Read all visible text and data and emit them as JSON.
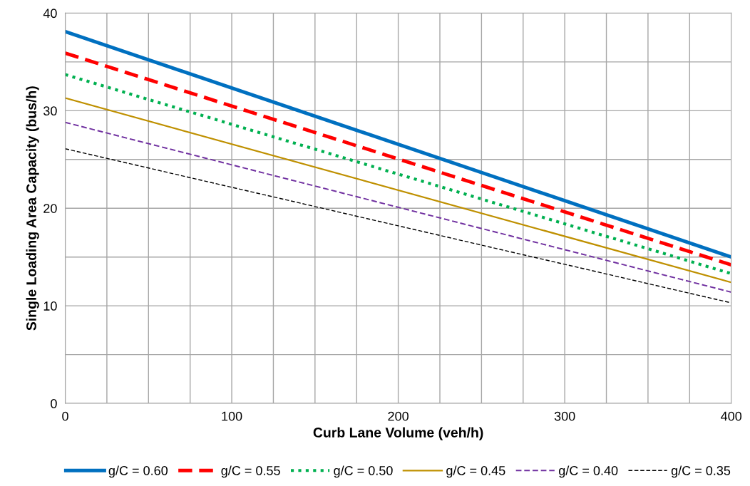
{
  "chart_data": {
    "type": "line",
    "xlabel": "Curb Lane Volume (veh/h)",
    "ylabel": "Single Loading Area Capacity (bus/h)",
    "x": [
      0,
      400
    ],
    "xlim": [
      0,
      400
    ],
    "ylim": [
      0,
      40
    ],
    "xticks": [
      0,
      {
        "value": 25,
        "label": null
      },
      {
        "value": 50,
        "label": null
      },
      {
        "value": 75,
        "label": null
      },
      100,
      {
        "value": 125,
        "label": null
      },
      {
        "value": 150,
        "label": null
      },
      {
        "value": 175,
        "label": null
      },
      200,
      {
        "value": 225,
        "label": null
      },
      {
        "value": 250,
        "label": null
      },
      {
        "value": 275,
        "label": null
      },
      300,
      {
        "value": 325,
        "label": null
      },
      {
        "value": 350,
        "label": null
      },
      {
        "value": 375,
        "label": null
      },
      400
    ],
    "yticks": [
      0,
      {
        "value": 5,
        "label": null
      },
      10,
      {
        "value": 15,
        "label": null
      },
      20,
      {
        "value": 25,
        "label": null
      },
      30,
      {
        "value": 35,
        "label": null
      },
      40
    ],
    "grid": true,
    "legend": "bottom",
    "marker": "none",
    "series": [
      {
        "name": "g/C = 0.60",
        "color": "#0070c0",
        "line_style": "solid",
        "values": [
          38.1,
          15.0
        ]
      },
      {
        "name": "g/C = 0.55",
        "color": "#ff0000",
        "line_style": "dashed",
        "values": [
          35.9,
          14.2
        ]
      },
      {
        "name": "g/C = 0.50",
        "color": "#00b050",
        "line_style": "dotted",
        "values": [
          33.7,
          13.3
        ]
      },
      {
        "name": "g/C = 0.45",
        "color": "#bf9000",
        "line_style": "solid",
        "values": [
          31.3,
          12.4
        ]
      },
      {
        "name": "g/C = 0.40",
        "color": "#7030a0",
        "line_style": "dashed",
        "values": [
          28.8,
          11.4
        ]
      },
      {
        "name": "g/C = 0.35",
        "color": "#000000",
        "line_style": "dashed",
        "values": [
          26.1,
          10.3
        ]
      }
    ]
  }
}
